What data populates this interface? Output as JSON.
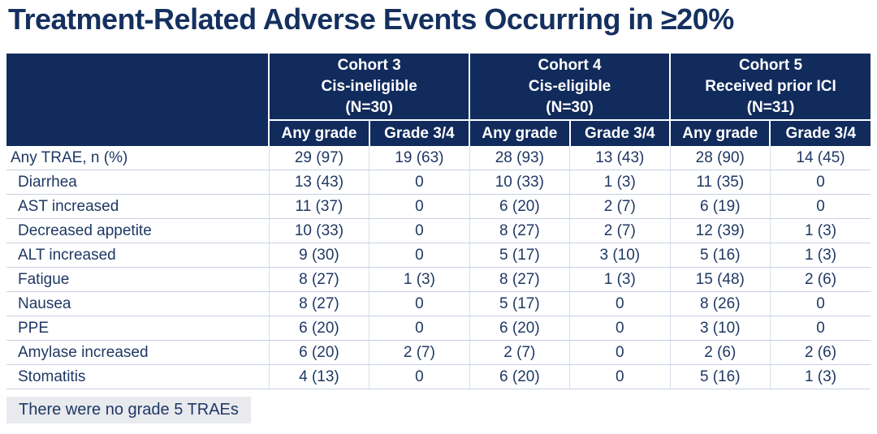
{
  "title": "Treatment-Related Adverse Events Occurring in ≥20%",
  "colors": {
    "header_navy": "#112b5c",
    "title_navy": "#14305f",
    "body_text": "#1f3864",
    "row_line": "#c6d0e2",
    "footnote_bg": "#e8eaee"
  },
  "table": {
    "cohort_headers": [
      {
        "title": "Cohort 3\nCis-ineligible\n(N=30)"
      },
      {
        "title": "Cohort 4\nCis-eligible\n(N=30)"
      },
      {
        "title": "Cohort 5\nReceived prior ICI\n(N=31)"
      }
    ],
    "grade_headers": [
      "Any grade",
      "Grade 3/4",
      "Any grade",
      "Grade 3/4",
      "Any grade",
      "Grade 3/4"
    ],
    "rows": [
      {
        "label": "Any TRAE, n (%)",
        "cells": [
          "29 (97)",
          "19 (63)",
          "28 (93)",
          "13 (43)",
          "28 (90)",
          "14 (45)"
        ]
      },
      {
        "label": "Diarrhea",
        "cells": [
          "13 (43)",
          "0",
          "10 (33)",
          "1 (3)",
          "11 (35)",
          "0"
        ]
      },
      {
        "label": "AST increased",
        "cells": [
          "11 (37)",
          "0",
          "6 (20)",
          "2 (7)",
          "6 (19)",
          "0"
        ]
      },
      {
        "label": "Decreased appetite",
        "cells": [
          "10 (33)",
          "0",
          "8 (27)",
          "2 (7)",
          "12 (39)",
          "1 (3)"
        ]
      },
      {
        "label": "ALT increased",
        "cells": [
          "9 (30)",
          "0",
          "5 (17)",
          "3 (10)",
          "5 (16)",
          "1 (3)"
        ]
      },
      {
        "label": "Fatigue",
        "cells": [
          "8 (27)",
          "1 (3)",
          "8 (27)",
          "1 (3)",
          "15 (48)",
          "2 (6)"
        ]
      },
      {
        "label": "Nausea",
        "cells": [
          "8 (27)",
          "0",
          "5 (17)",
          "0",
          "8 (26)",
          "0"
        ]
      },
      {
        "label": "PPE",
        "cells": [
          "6 (20)",
          "0",
          "6 (20)",
          "0",
          "3 (10)",
          "0"
        ]
      },
      {
        "label": "Amylase increased",
        "cells": [
          "6 (20)",
          "2 (7)",
          "2 (7)",
          "0",
          "2 (6)",
          "2 (6)"
        ]
      },
      {
        "label": "Stomatitis",
        "cells": [
          "4 (13)",
          "0",
          "6 (20)",
          "0",
          "5 (16)",
          "1 (3)"
        ]
      }
    ]
  },
  "footnote": "There were no grade 5 TRAEs"
}
